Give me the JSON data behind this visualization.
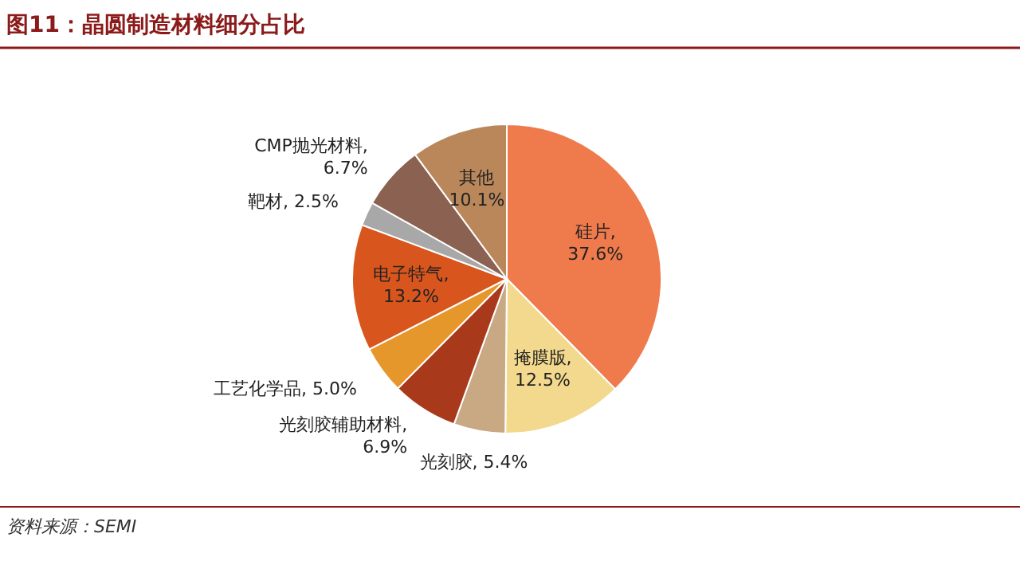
{
  "chart_data": {
    "type": "pie",
    "title": "图11：晶圆制造材料细分占比",
    "categories": [
      "硅片",
      "掩膜版",
      "光刻胶",
      "光刻胶辅助材料",
      "工艺化学品",
      "电子特气",
      "靶材",
      "CMP抛光材料",
      "其他"
    ],
    "values": [
      37.6,
      12.5,
      5.4,
      6.9,
      5.0,
      13.2,
      2.5,
      6.7,
      10.1
    ],
    "colors": [
      "#ef7a4c",
      "#f3d98e",
      "#c9a884",
      "#a9391b",
      "#e6972c",
      "#d8561d",
      "#a8a8a8",
      "#8b6152",
      "#b9875a"
    ],
    "value_labels": [
      ", 37.6%",
      ", 12.5%",
      ", 5.4%",
      ", 6.9%",
      ", 5.0%",
      ", 13.2%",
      ", 2.5%",
      ", 6.7%",
      "10.1%"
    ],
    "annotations": [
      "资料来源：SEMI"
    ]
  }
}
